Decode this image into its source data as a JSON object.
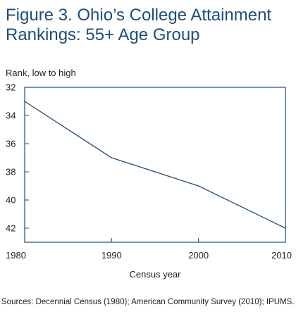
{
  "title": "Figure 3. Ohio’s College Attainment Rankings: 55+ Age Group",
  "source": "Sources: Decennial Census (1980); American Community Survey (2010); IPUMS.",
  "chart_data": {
    "type": "line",
    "title": "Figure 3. Ohio’s College Attainment Rankings: 55+ Age Group",
    "ylabel": "Rank, low to high",
    "xlabel": "Census year",
    "x": [
      1980,
      1990,
      2000,
      2010
    ],
    "xticks": [
      "1980",
      "1990",
      "2000",
      "2010"
    ],
    "yticks": [
      "32",
      "34",
      "36",
      "38",
      "40",
      "42"
    ],
    "ylim": [
      32,
      43
    ],
    "y_inverted": true,
    "grid": false,
    "series": [
      {
        "values": [
          33,
          37,
          39,
          42
        ]
      }
    ],
    "colors": {
      "line": "#1f4e79",
      "axis": "#1f4e79",
      "title": "#1f4e79"
    }
  }
}
